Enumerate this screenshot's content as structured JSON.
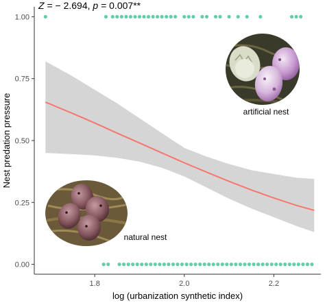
{
  "chart_data": {
    "type": "scatter",
    "title": "",
    "annotation": {
      "z_symbol": "Z",
      "z_text": " = − 2.694, ",
      "p_symbol": "p",
      "p_text": " = 0.007**"
    },
    "xlabel": "log (urbanization synthetic index)",
    "ylabel": "Nest predation pressure",
    "xlim": [
      1.665,
      2.305
    ],
    "ylim": [
      -0.04,
      1.04
    ],
    "x_ticks": [
      1.8,
      2.0,
      2.2
    ],
    "x_tick_labels": [
      "1.8",
      "2.0",
      "2.2"
    ],
    "y_ticks": [
      0.0,
      0.25,
      0.5,
      0.75,
      1.0
    ],
    "y_tick_labels": [
      "0.00",
      "0.25",
      "0.50",
      "0.75",
      "1.00"
    ],
    "grid": false,
    "colors": {
      "points": "#66cdaa",
      "fit_line": "#f8766d",
      "confidence_band": "#d3d3d3",
      "axis": "#333333"
    },
    "series": [
      {
        "y": 1.0,
        "x": [
          1.69,
          1.825,
          1.84,
          1.85,
          1.86,
          1.87,
          1.88,
          1.89,
          1.9,
          1.91,
          1.92,
          1.93,
          1.94,
          1.95,
          1.96,
          1.97,
          1.98,
          2.0,
          2.01,
          2.02,
          2.04,
          2.05,
          2.07,
          2.08,
          2.1,
          2.12,
          2.14,
          2.17,
          2.24,
          2.25,
          2.26
        ]
      },
      {
        "y": 0.0,
        "x": [
          1.82,
          1.83,
          1.855,
          1.865,
          1.875,
          1.885,
          1.895,
          1.905,
          1.915,
          1.925,
          1.935,
          1.945,
          1.955,
          1.965,
          1.975,
          1.985,
          1.995,
          2.005,
          2.015,
          2.025,
          2.035,
          2.045,
          2.055,
          2.065,
          2.075,
          2.085,
          2.095,
          2.105,
          2.115,
          2.125,
          2.135,
          2.145,
          2.155,
          2.165,
          2.175,
          2.185,
          2.195,
          2.205,
          2.215,
          2.225,
          2.235,
          2.245,
          2.255,
          2.265,
          2.275,
          2.285
        ]
      }
    ],
    "fit": {
      "x": [
        1.69,
        1.75,
        1.8,
        1.85,
        1.9,
        1.95,
        2.0,
        2.05,
        2.1,
        2.15,
        2.2,
        2.25,
        2.29
      ],
      "y": [
        0.655,
        0.61,
        0.571,
        0.53,
        0.49,
        0.45,
        0.41,
        0.372,
        0.335,
        0.3,
        0.268,
        0.238,
        0.218
      ],
      "lower": [
        0.45,
        0.445,
        0.44,
        0.43,
        0.415,
        0.39,
        0.355,
        0.31,
        0.265,
        0.225,
        0.19,
        0.155,
        0.13
      ],
      "upper": [
        0.82,
        0.76,
        0.705,
        0.65,
        0.59,
        0.53,
        0.47,
        0.435,
        0.405,
        0.38,
        0.365,
        0.35,
        0.345
      ]
    },
    "photos": [
      {
        "icon": "artificial-nest-photo",
        "caption": "artificial nest"
      },
      {
        "icon": "natural-nest-photo",
        "caption": "natural nest"
      }
    ]
  }
}
